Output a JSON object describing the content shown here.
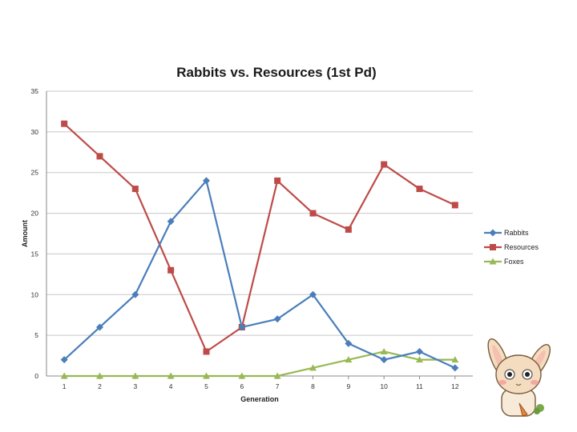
{
  "chart_data": {
    "type": "line",
    "title": "Rabbits vs. Resources (1st Pd)",
    "xlabel": "Generation",
    "ylabel": "Amount",
    "x": [
      1,
      2,
      3,
      4,
      5,
      6,
      7,
      8,
      9,
      10,
      11,
      12
    ],
    "ylim": [
      0,
      35
    ],
    "yticks": [
      0,
      5,
      10,
      15,
      20,
      25,
      30,
      35
    ],
    "grid": true,
    "legend_position": "right",
    "series": [
      {
        "name": "Rabbits",
        "color": "#4a7ebb",
        "marker": "diamond",
        "values": [
          2,
          6,
          10,
          19,
          24,
          6,
          7,
          10,
          4,
          2,
          3,
          1
        ]
      },
      {
        "name": "Resources",
        "color": "#be4b48",
        "marker": "square",
        "values": [
          31,
          27,
          23,
          13,
          3,
          6,
          24,
          20,
          18,
          26,
          23,
          21
        ]
      },
      {
        "name": "Foxes",
        "color": "#98b954",
        "marker": "triangle",
        "values": [
          0,
          0,
          0,
          0,
          0,
          0,
          0,
          1,
          2,
          3,
          2,
          2
        ]
      }
    ]
  },
  "decoration": {
    "icon": "bunny-mascot-icon"
  }
}
